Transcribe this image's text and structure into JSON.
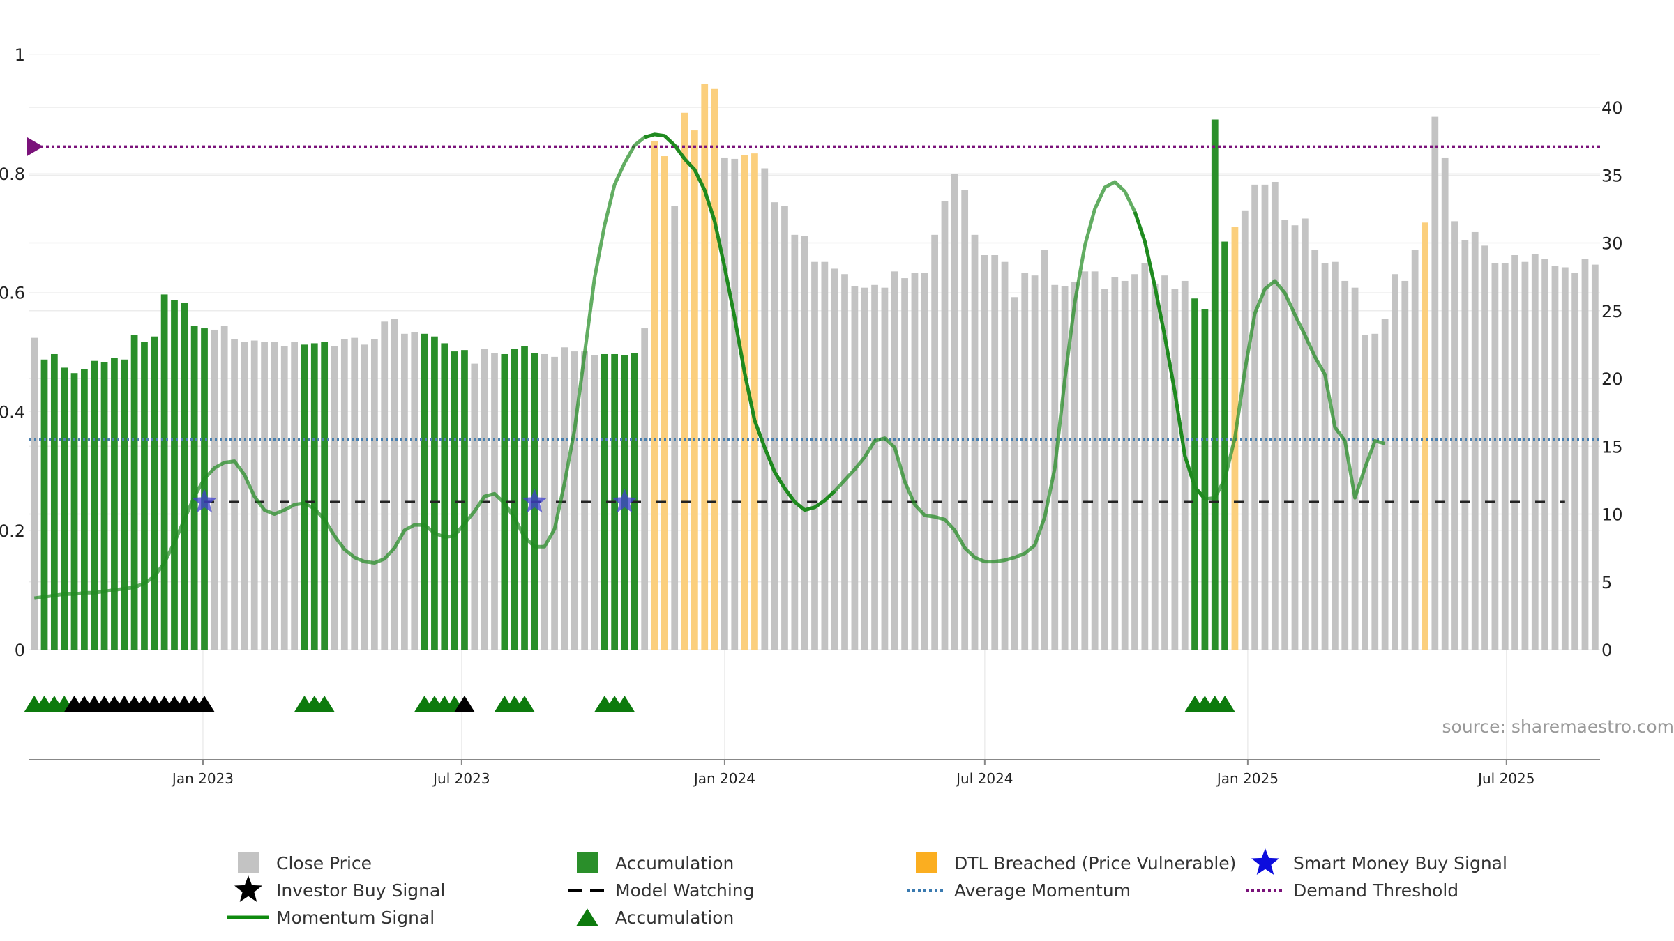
{
  "source_label": "source: sharemaestro.com",
  "colors": {
    "close": "#c3c3c3",
    "accumulation": "#2a8f2a",
    "dtl": "#fbcf7d",
    "momentum": "#1f8a1f",
    "model_watching": "#222222",
    "average_momentum": "#4a80b0",
    "demand_threshold": "#7a127a",
    "smart_money": "#4040d0",
    "investor": "#000000",
    "accum_marker": "#0d7a0d"
  },
  "chart_data": {
    "type": "bar",
    "title": "",
    "left_axis": {
      "ticks": [
        "0",
        "0.2",
        "0.4",
        "0.6",
        "0.8",
        "1"
      ],
      "range": [
        0,
        1
      ]
    },
    "right_axis": {
      "ticks": [
        "0",
        "5",
        "10",
        "15",
        "20",
        "25",
        "30",
        "35",
        "40"
      ],
      "range": [
        0,
        40
      ]
    },
    "x_ticks": [
      "Jan 2023",
      "Jul 2023",
      "Jan 2024",
      "Jul 2024",
      "Jan 2025",
      "Jul 2025"
    ],
    "start_week": "2022-09-05",
    "weeks": 157,
    "close_prices": [
      23.0,
      21.4,
      21.8,
      20.8,
      20.4,
      20.7,
      21.3,
      21.2,
      21.5,
      21.4,
      23.2,
      22.7,
      23.1,
      26.2,
      25.8,
      25.6,
      23.9,
      23.7,
      23.6,
      23.9,
      22.9,
      22.7,
      22.8,
      22.7,
      22.7,
      22.4,
      22.7,
      22.5,
      22.6,
      22.7,
      22.4,
      22.9,
      23.0,
      22.5,
      22.9,
      24.2,
      24.4,
      23.3,
      23.4,
      23.3,
      23.1,
      22.6,
      22.0,
      22.1,
      21.1,
      22.2,
      21.9,
      21.8,
      22.2,
      22.4,
      21.9,
      21.8,
      21.6,
      22.3,
      22.0,
      22.0,
      21.7,
      21.8,
      21.8,
      21.7,
      21.9,
      23.7,
      37.5,
      36.4,
      32.7,
      39.6,
      38.3,
      41.7,
      41.4,
      36.3,
      36.2,
      36.5,
      36.6,
      35.5,
      33.0,
      32.7,
      30.6,
      30.5,
      28.6,
      28.6,
      28.1,
      27.7,
      26.8,
      26.7,
      26.9,
      26.7,
      27.9,
      27.4,
      27.8,
      27.8,
      30.6,
      33.1,
      35.1,
      33.9,
      30.6,
      29.1,
      29.1,
      28.6,
      26.0,
      27.8,
      27.6,
      29.5,
      26.9,
      26.8,
      27.1,
      27.9,
      27.9,
      26.6,
      27.5,
      27.2,
      27.7,
      28.5,
      27.0,
      27.6,
      26.6,
      27.2,
      25.9,
      25.1,
      39.1,
      30.1,
      31.2,
      32.4,
      34.3,
      34.3,
      34.5,
      31.7,
      31.3,
      31.8,
      29.5,
      28.5,
      28.6,
      27.2,
      26.7,
      23.2,
      23.3,
      24.4,
      27.7,
      27.2,
      29.5,
      31.5,
      39.3,
      36.3,
      31.6,
      30.2,
      30.8,
      29.8,
      28.5,
      28.5,
      29.1,
      28.6,
      29.2,
      28.8,
      28.3,
      28.2,
      27.8,
      28.8,
      28.4
    ],
    "bar_categories": [
      {
        "type": "accumulation",
        "ranges": [
          [
            1,
            17
          ],
          [
            27,
            29
          ],
          [
            39,
            43
          ],
          [
            47,
            50
          ],
          [
            57,
            60
          ],
          [
            116,
            119
          ]
        ]
      },
      {
        "type": "dtl",
        "ranges": [
          [
            62,
            63
          ],
          [
            65,
            68
          ],
          [
            71,
            72
          ],
          [
            120,
            120
          ],
          [
            139,
            139
          ]
        ]
      }
    ],
    "momentum_signal": [
      3.8,
      3.9,
      4.0,
      4.1,
      4.1,
      4.2,
      4.2,
      4.3,
      4.4,
      4.5,
      4.6,
      4.9,
      5.4,
      6.4,
      7.9,
      9.6,
      11.3,
      12.6,
      13.4,
      13.8,
      13.9,
      12.9,
      11.3,
      10.3,
      10.0,
      10.3,
      10.7,
      10.8,
      10.4,
      9.6,
      8.4,
      7.4,
      6.8,
      6.5,
      6.4,
      6.7,
      7.5,
      8.8,
      9.2,
      9.2,
      8.6,
      8.3,
      8.4,
      9.3,
      10.2,
      11.3,
      11.5,
      10.8,
      9.7,
      8.3,
      7.6,
      7.6,
      8.9,
      12.3,
      16.2,
      21.8,
      27.4,
      31.3,
      34.3,
      35.9,
      37.2,
      37.8,
      38.0,
      37.9,
      37.2,
      36.2,
      35.4,
      33.9,
      31.6,
      28.2,
      24.5,
      20.4,
      16.9,
      14.9,
      13.1,
      11.9,
      10.9,
      10.3,
      10.5,
      11.0,
      11.7,
      12.5,
      13.3,
      14.2,
      15.4,
      15.6,
      14.9,
      12.4,
      10.7,
      9.9,
      9.8,
      9.6,
      8.8,
      7.5,
      6.8,
      6.5,
      6.5,
      6.6,
      6.8,
      7.1,
      7.7,
      9.8,
      13.4,
      19.9,
      25.6,
      29.8,
      32.5,
      34.1,
      34.5,
      33.8,
      32.3,
      30.1,
      26.8,
      23.1,
      19.0,
      14.3,
      12.0,
      11.1,
      11.2,
      12.6,
      15.6,
      20.6,
      24.8,
      26.6,
      27.2,
      26.3,
      24.7,
      23.2,
      21.6,
      20.3,
      16.4,
      15.4,
      11.2,
      13.4,
      15.4,
      15.2
    ],
    "momentum_bold_ranges": [
      [
        61,
        80
      ],
      [
        110,
        117
      ]
    ],
    "average_momentum": 15.5,
    "demand_threshold": 0.845,
    "model_watching_level": 10.9,
    "model_watching_range": [
      17,
      153
    ],
    "smart_money_signals": [
      17,
      50,
      59
    ],
    "investor_signals": [
      4,
      5,
      6,
      7,
      8,
      9,
      10,
      11,
      12,
      13,
      14,
      15,
      16,
      17,
      43
    ],
    "accumulation_markers": [
      0,
      1,
      2,
      3,
      27,
      28,
      29,
      39,
      40,
      41,
      42,
      47,
      48,
      49,
      57,
      58,
      59,
      116,
      117,
      118,
      119
    ],
    "legend": [
      {
        "label": "Close Price",
        "type": "square",
        "color": "#c3c3c3"
      },
      {
        "label": "Accumulation",
        "type": "square",
        "color": "#2a8f2a"
      },
      {
        "label": "DTL Breached (Price Vulnerable)",
        "type": "square",
        "color": "#fbae20"
      },
      {
        "label": "Smart Money Buy Signal",
        "type": "star",
        "color": "#0d0ddd"
      },
      {
        "label": "Investor Buy Signal",
        "type": "star",
        "color": "#000000"
      },
      {
        "label": "Model Watching",
        "type": "dash",
        "color": "#000000"
      },
      {
        "label": "Average Momentum",
        "type": "dot",
        "color": "#3a7ab0"
      },
      {
        "label": "Demand Threshold",
        "type": "dot",
        "color": "#7a127a"
      },
      {
        "label": "Momentum Signal",
        "type": "line",
        "color": "#0e8a0e"
      },
      {
        "label": "Accumulation",
        "type": "triangle",
        "color": "#0d7a0d"
      }
    ]
  }
}
